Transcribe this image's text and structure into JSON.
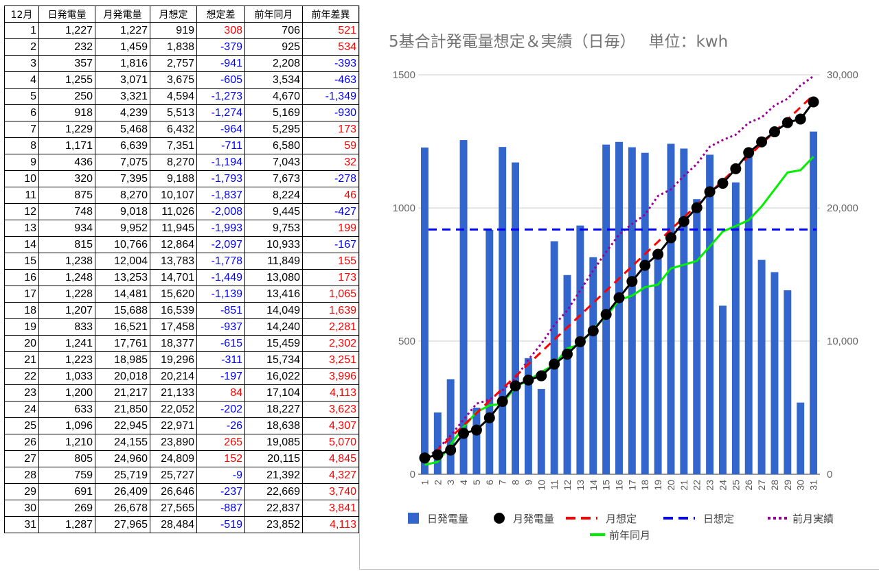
{
  "table": {
    "headers": [
      "12月",
      "日発電量",
      "月発電量",
      "月想定",
      "想定差",
      "前年同月",
      "前年差異"
    ],
    "rows": [
      [
        "1",
        "1,227",
        "1,227",
        "919",
        "308",
        "706",
        "521"
      ],
      [
        "2",
        "232",
        "1,459",
        "1,838",
        "-379",
        "925",
        "534"
      ],
      [
        "3",
        "357",
        "1,816",
        "2,757",
        "-941",
        "2,208",
        "-393"
      ],
      [
        "4",
        "1,255",
        "3,071",
        "3,675",
        "-605",
        "3,534",
        "-463"
      ],
      [
        "5",
        "250",
        "3,321",
        "4,594",
        "-1,273",
        "4,670",
        "-1,349"
      ],
      [
        "6",
        "918",
        "4,239",
        "5,513",
        "-1,274",
        "5,169",
        "-930"
      ],
      [
        "7",
        "1,229",
        "5,468",
        "6,432",
        "-964",
        "5,295",
        "173"
      ],
      [
        "8",
        "1,171",
        "6,639",
        "7,351",
        "-711",
        "6,580",
        "59"
      ],
      [
        "9",
        "436",
        "7,075",
        "8,270",
        "-1,194",
        "7,043",
        "32"
      ],
      [
        "10",
        "320",
        "7,395",
        "9,188",
        "-1,793",
        "7,673",
        "-278"
      ],
      [
        "11",
        "875",
        "8,270",
        "10,107",
        "-1,837",
        "8,224",
        "46"
      ],
      [
        "12",
        "748",
        "9,018",
        "11,026",
        "-2,008",
        "9,445",
        "-427"
      ],
      [
        "13",
        "934",
        "9,952",
        "11,945",
        "-1,993",
        "9,753",
        "199"
      ],
      [
        "14",
        "815",
        "10,766",
        "12,864",
        "-2,097",
        "10,933",
        "-167"
      ],
      [
        "15",
        "1,238",
        "12,004",
        "13,783",
        "-1,778",
        "11,849",
        "155"
      ],
      [
        "16",
        "1,248",
        "13,253",
        "14,701",
        "-1,449",
        "13,080",
        "173"
      ],
      [
        "17",
        "1,228",
        "14,481",
        "15,620",
        "-1,139",
        "13,416",
        "1,065"
      ],
      [
        "18",
        "1,207",
        "15,688",
        "16,539",
        "-851",
        "14,049",
        "1,639"
      ],
      [
        "19",
        "833",
        "16,521",
        "17,458",
        "-937",
        "14,240",
        "2,281"
      ],
      [
        "20",
        "1,241",
        "17,761",
        "18,377",
        "-615",
        "15,459",
        "2,302"
      ],
      [
        "21",
        "1,223",
        "18,985",
        "19,296",
        "-311",
        "15,734",
        "3,251"
      ],
      [
        "22",
        "1,033",
        "20,018",
        "20,214",
        "-197",
        "16,022",
        "3,996"
      ],
      [
        "23",
        "1,200",
        "21,217",
        "21,133",
        "84",
        "17,104",
        "4,113"
      ],
      [
        "24",
        "633",
        "21,850",
        "22,052",
        "-202",
        "18,227",
        "3,623"
      ],
      [
        "25",
        "1,096",
        "22,945",
        "22,971",
        "-26",
        "18,638",
        "4,307"
      ],
      [
        "26",
        "1,210",
        "24,155",
        "23,890",
        "265",
        "19,085",
        "5,070"
      ],
      [
        "27",
        "805",
        "24,960",
        "24,809",
        "152",
        "20,115",
        "4,845"
      ],
      [
        "28",
        "759",
        "25,719",
        "25,727",
        "-9",
        "21,392",
        "4,327"
      ],
      [
        "29",
        "691",
        "26,409",
        "26,646",
        "-237",
        "22,669",
        "3,740"
      ],
      [
        "30",
        "269",
        "26,678",
        "27,565",
        "-887",
        "22,837",
        "3,841"
      ],
      [
        "31",
        "1,287",
        "27,965",
        "28,484",
        "-519",
        "23,852",
        "4,113"
      ]
    ]
  },
  "colors": {
    "positive": "#ff0000",
    "negative": "#0000ff",
    "bar": "#3366cc",
    "monthly_actual": "#000000",
    "monthly_plan": "#ff0000",
    "daily_plan": "#0000ff",
    "prev_month": "#990099",
    "prev_year": "#00ee00"
  },
  "chart_data": {
    "type": "bar",
    "title": "5基合計発電量想定＆実績（日毎）　 単位：kwh",
    "categories": [
      "1",
      "2",
      "3",
      "4",
      "5",
      "6",
      "7",
      "8",
      "9",
      "10",
      "11",
      "12",
      "13",
      "14",
      "15",
      "16",
      "17",
      "18",
      "19",
      "20",
      "21",
      "22",
      "23",
      "24",
      "25",
      "26",
      "27",
      "28",
      "29",
      "30",
      "31"
    ],
    "left_axis": {
      "ylim": [
        0,
        1500
      ],
      "ticks": [
        0,
        500,
        1000,
        1500
      ],
      "tick_labels": [
        "0",
        "500",
        "1000",
        "1500"
      ]
    },
    "right_axis": {
      "ylim": [
        0,
        30000
      ],
      "ticks": [
        0,
        10000,
        20000,
        30000
      ],
      "tick_labels": [
        "0",
        "10,000",
        "20,000",
        "30,000"
      ]
    },
    "grid": true,
    "legend_position": "bottom",
    "series": [
      {
        "name": "日発電量",
        "type": "bar",
        "axis": "left",
        "values": [
          1227,
          232,
          357,
          1255,
          250,
          918,
          1229,
          1171,
          436,
          320,
          875,
          748,
          934,
          815,
          1238,
          1248,
          1228,
          1207,
          833,
          1241,
          1223,
          1033,
          1200,
          633,
          1096,
          1210,
          805,
          759,
          691,
          269,
          1287
        ]
      },
      {
        "name": "月発電量",
        "type": "line-marker",
        "axis": "right",
        "values": [
          1227,
          1459,
          1816,
          3071,
          3321,
          4239,
          5468,
          6639,
          7075,
          7395,
          8270,
          9018,
          9952,
          10766,
          12004,
          13253,
          14481,
          15688,
          16521,
          17761,
          18985,
          20018,
          21217,
          21850,
          22945,
          24155,
          24960,
          25719,
          26409,
          26678,
          27965
        ]
      },
      {
        "name": "月想定",
        "type": "line-dashed",
        "axis": "right",
        "values": [
          919,
          1838,
          2757,
          3675,
          4594,
          5513,
          6432,
          7351,
          8270,
          9188,
          10107,
          11026,
          11945,
          12864,
          13783,
          14701,
          15620,
          16539,
          17458,
          18377,
          19296,
          20214,
          21133,
          22052,
          22971,
          23890,
          24809,
          25727,
          26646,
          27565,
          28484
        ]
      },
      {
        "name": "日想定",
        "type": "line-dashed",
        "axis": "left",
        "values": [
          919,
          919,
          919,
          919,
          919,
          919,
          919,
          919,
          919,
          919,
          919,
          919,
          919,
          919,
          919,
          919,
          919,
          919,
          919,
          919,
          919,
          919,
          919,
          919,
          919,
          919,
          919,
          919,
          919,
          919,
          919
        ]
      },
      {
        "name": "前月実績",
        "type": "line-dotted",
        "axis": "right",
        "values": [
          1100,
          1900,
          2900,
          4100,
          5300,
          5600,
          6300,
          7200,
          8600,
          9800,
          11200,
          12300,
          13800,
          15300,
          16700,
          18000,
          18800,
          19500,
          20900,
          21400,
          22400,
          23300,
          24600,
          25100,
          25500,
          26400,
          26800,
          27700,
          28200,
          29200,
          29900
        ]
      },
      {
        "name": "前年同月",
        "type": "line",
        "axis": "right",
        "values": [
          706,
          925,
          2208,
          3534,
          4670,
          5169,
          5295,
          6580,
          7043,
          7673,
          8224,
          9445,
          9753,
          10933,
          11849,
          13080,
          13416,
          14049,
          14240,
          15459,
          15734,
          16022,
          17104,
          18227,
          18638,
          19085,
          20115,
          21392,
          22669,
          22837,
          23852
        ]
      }
    ]
  }
}
